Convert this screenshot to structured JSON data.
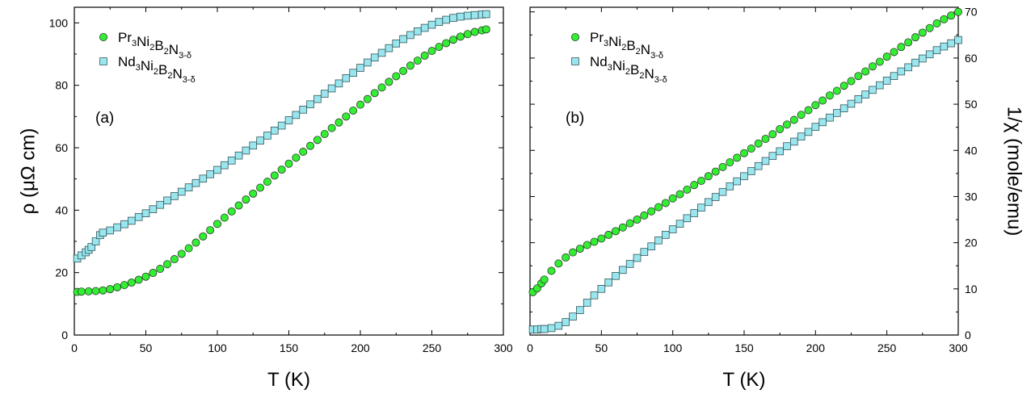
{
  "chart_data": [
    {
      "type": "scatter",
      "panel_label": "(a)",
      "xlabel": "T (K)",
      "ylabel": "ρ (μΩ cm)",
      "xlim": [
        0,
        300
      ],
      "ylim": [
        0,
        105
      ],
      "xticks": [
        0,
        50,
        100,
        150,
        200,
        250,
        300
      ],
      "yticks": [
        0,
        20,
        40,
        60,
        80,
        100
      ],
      "y_axis_side": "left",
      "grid": false,
      "legend_placement": "top-left",
      "series": [
        {
          "name": "Pr3Ni2B2N3-δ",
          "legend": {
            "base": [
              "Pr",
              "Ni",
              "B",
              "N"
            ],
            "subs": [
              "3",
              "2",
              "2",
              "3-δ"
            ]
          },
          "marker": "circle",
          "color": "#33ee33",
          "points": [
            [
              2,
              13.8
            ],
            [
              5,
              13.9
            ],
            [
              10,
              14.0
            ],
            [
              15,
              14.1
            ],
            [
              20,
              14.3
            ],
            [
              25,
              14.7
            ],
            [
              30,
              15.3
            ],
            [
              35,
              16.0
            ],
            [
              40,
              16.8
            ],
            [
              45,
              17.7
            ],
            [
              50,
              18.7
            ],
            [
              55,
              19.9
            ],
            [
              60,
              21.2
            ],
            [
              65,
              22.7
            ],
            [
              70,
              24.3
            ],
            [
              75,
              26.0
            ],
            [
              80,
              27.8
            ],
            [
              85,
              29.6
            ],
            [
              90,
              31.6
            ],
            [
              95,
              33.6
            ],
            [
              100,
              35.6
            ],
            [
              105,
              37.6
            ],
            [
              110,
              39.6
            ],
            [
              115,
              41.5
            ],
            [
              120,
              43.4
            ],
            [
              125,
              45.3
            ],
            [
              130,
              47.2
            ],
            [
              135,
              49.1
            ],
            [
              140,
              51.1
            ],
            [
              145,
              53.0
            ],
            [
              150,
              54.9
            ],
            [
              155,
              56.8
            ],
            [
              160,
              58.7
            ],
            [
              165,
              60.6
            ],
            [
              170,
              62.5
            ],
            [
              175,
              64.4
            ],
            [
              180,
              66.3
            ],
            [
              185,
              68.1
            ],
            [
              190,
              70.0
            ],
            [
              195,
              71.9
            ],
            [
              200,
              73.8
            ],
            [
              205,
              75.6
            ],
            [
              210,
              77.5
            ],
            [
              215,
              79.3
            ],
            [
              220,
              81.1
            ],
            [
              225,
              82.9
            ],
            [
              230,
              84.6
            ],
            [
              235,
              86.3
            ],
            [
              240,
              87.9
            ],
            [
              245,
              89.5
            ],
            [
              250,
              91.0
            ],
            [
              255,
              92.3
            ],
            [
              260,
              93.5
            ],
            [
              265,
              94.6
            ],
            [
              270,
              95.6
            ],
            [
              275,
              96.4
            ],
            [
              280,
              97.1
            ],
            [
              285,
              97.6
            ],
            [
              288,
              97.9
            ]
          ]
        },
        {
          "name": "Nd3Ni2B2N3-δ",
          "legend": {
            "base": [
              "Nd",
              "Ni",
              "B",
              "N"
            ],
            "subs": [
              "3",
              "2",
              "2",
              "3-δ"
            ]
          },
          "marker": "square",
          "color": "#99e6ee",
          "points": [
            [
              2,
              24.5
            ],
            [
              5,
              25.5
            ],
            [
              8,
              26.5
            ],
            [
              10,
              27.3
            ],
            [
              12,
              28.2
            ],
            [
              15,
              30.0
            ],
            [
              18,
              32.0
            ],
            [
              20,
              32.8
            ],
            [
              25,
              33.5
            ],
            [
              30,
              34.5
            ],
            [
              35,
              35.5
            ],
            [
              40,
              36.6
            ],
            [
              45,
              37.8
            ],
            [
              50,
              39.0
            ],
            [
              55,
              40.3
            ],
            [
              60,
              41.7
            ],
            [
              65,
              43.1
            ],
            [
              70,
              44.5
            ],
            [
              75,
              45.9
            ],
            [
              80,
              47.3
            ],
            [
              85,
              48.7
            ],
            [
              90,
              50.1
            ],
            [
              95,
              51.5
            ],
            [
              100,
              52.9
            ],
            [
              105,
              54.4
            ],
            [
              110,
              55.9
            ],
            [
              115,
              57.5
            ],
            [
              120,
              59.1
            ],
            [
              125,
              60.7
            ],
            [
              130,
              62.3
            ],
            [
              135,
              63.9
            ],
            [
              140,
              65.5
            ],
            [
              145,
              67.1
            ],
            [
              150,
              68.8
            ],
            [
              155,
              70.5
            ],
            [
              160,
              72.2
            ],
            [
              165,
              73.9
            ],
            [
              170,
              75.6
            ],
            [
              175,
              77.3
            ],
            [
              180,
              79.0
            ],
            [
              185,
              80.6
            ],
            [
              190,
              82.3
            ],
            [
              195,
              84.0
            ],
            [
              200,
              85.6
            ],
            [
              205,
              87.3
            ],
            [
              210,
              88.9
            ],
            [
              215,
              90.4
            ],
            [
              220,
              91.9
            ],
            [
              225,
              93.4
            ],
            [
              230,
              94.8
            ],
            [
              235,
              96.1
            ],
            [
              240,
              97.3
            ],
            [
              245,
              98.4
            ],
            [
              250,
              99.4
            ],
            [
              255,
              100.3
            ],
            [
              260,
              101.0
            ],
            [
              265,
              101.6
            ],
            [
              270,
              102.0
            ],
            [
              275,
              102.3
            ],
            [
              280,
              102.5
            ],
            [
              285,
              102.7
            ],
            [
              288,
              102.8
            ]
          ]
        }
      ]
    },
    {
      "type": "scatter",
      "panel_label": "(b)",
      "xlabel": "T (K)",
      "ylabel": "1/χ (mole/emu)",
      "xlim": [
        0,
        300
      ],
      "ylim": [
        0,
        71
      ],
      "xticks": [
        0,
        50,
        100,
        150,
        200,
        250,
        300
      ],
      "yticks": [
        0,
        10,
        20,
        30,
        40,
        50,
        60,
        70
      ],
      "y_axis_side": "right",
      "grid": false,
      "legend_placement": "top-left",
      "series": [
        {
          "name": "Pr3Ni2B2N3-δ",
          "legend": {
            "base": [
              "Pr",
              "Ni",
              "B",
              "N"
            ],
            "subs": [
              "3",
              "2",
              "2",
              "3-δ"
            ]
          },
          "marker": "circle",
          "color": "#33ee33",
          "points": [
            [
              2,
              9.3
            ],
            [
              5,
              10.1
            ],
            [
              8,
              11.2
            ],
            [
              10,
              12.0
            ],
            [
              15,
              13.9
            ],
            [
              20,
              15.5
            ],
            [
              25,
              16.8
            ],
            [
              30,
              17.9
            ],
            [
              35,
              18.7
            ],
            [
              40,
              19.5
            ],
            [
              45,
              20.2
            ],
            [
              50,
              20.9
            ],
            [
              55,
              21.7
            ],
            [
              60,
              22.5
            ],
            [
              65,
              23.3
            ],
            [
              70,
              24.2
            ],
            [
              75,
              25.0
            ],
            [
              80,
              25.9
            ],
            [
              85,
              26.8
            ],
            [
              90,
              27.7
            ],
            [
              95,
              28.6
            ],
            [
              100,
              29.6
            ],
            [
              105,
              30.5
            ],
            [
              110,
              31.5
            ],
            [
              115,
              32.5
            ],
            [
              120,
              33.4
            ],
            [
              125,
              34.4
            ],
            [
              130,
              35.4
            ],
            [
              135,
              36.4
            ],
            [
              140,
              37.4
            ],
            [
              145,
              38.4
            ],
            [
              150,
              39.4
            ],
            [
              155,
              40.4
            ],
            [
              160,
              41.5
            ],
            [
              165,
              42.5
            ],
            [
              170,
              43.5
            ],
            [
              175,
              44.6
            ],
            [
              180,
              45.6
            ],
            [
              185,
              46.6
            ],
            [
              190,
              47.7
            ],
            [
              195,
              48.7
            ],
            [
              200,
              49.8
            ],
            [
              205,
              50.8
            ],
            [
              210,
              51.9
            ],
            [
              215,
              52.9
            ],
            [
              220,
              54.0
            ],
            [
              225,
              55.0
            ],
            [
              230,
              56.1
            ],
            [
              235,
              57.1
            ],
            [
              240,
              58.2
            ],
            [
              245,
              59.2
            ],
            [
              250,
              60.3
            ],
            [
              255,
              61.3
            ],
            [
              260,
              62.4
            ],
            [
              265,
              63.4
            ],
            [
              270,
              64.5
            ],
            [
              275,
              65.5
            ],
            [
              280,
              66.5
            ],
            [
              285,
              67.5
            ],
            [
              290,
              68.4
            ],
            [
              295,
              69.2
            ],
            [
              300,
              70.0
            ]
          ]
        },
        {
          "name": "Nd3Ni2B2N3-δ",
          "legend": {
            "base": [
              "Nd",
              "Ni",
              "B",
              "N"
            ],
            "subs": [
              "3",
              "2",
              "2",
              "3-δ"
            ]
          },
          "marker": "square",
          "color": "#99e6ee",
          "points": [
            [
              2,
              1.2
            ],
            [
              5,
              1.2
            ],
            [
              8,
              1.3
            ],
            [
              10,
              1.3
            ],
            [
              15,
              1.5
            ],
            [
              20,
              2.0
            ],
            [
              25,
              2.8
            ],
            [
              30,
              4.0
            ],
            [
              35,
              5.4
            ],
            [
              40,
              7.0
            ],
            [
              45,
              8.6
            ],
            [
              50,
              10.0
            ],
            [
              55,
              11.4
            ],
            [
              60,
              12.8
            ],
            [
              65,
              14.1
            ],
            [
              70,
              15.4
            ],
            [
              75,
              16.7
            ],
            [
              80,
              18.0
            ],
            [
              85,
              19.2
            ],
            [
              90,
              20.5
            ],
            [
              95,
              21.7
            ],
            [
              100,
              22.9
            ],
            [
              105,
              24.1
            ],
            [
              110,
              25.3
            ],
            [
              115,
              26.4
            ],
            [
              120,
              27.6
            ],
            [
              125,
              28.8
            ],
            [
              130,
              29.9
            ],
            [
              135,
              31.0
            ],
            [
              140,
              32.2
            ],
            [
              145,
              33.3
            ],
            [
              150,
              34.4
            ],
            [
              155,
              35.5
            ],
            [
              160,
              36.6
            ],
            [
              165,
              37.7
            ],
            [
              170,
              38.8
            ],
            [
              175,
              39.8
            ],
            [
              180,
              40.9
            ],
            [
              185,
              41.9
            ],
            [
              190,
              43.0
            ],
            [
              195,
              44.0
            ],
            [
              200,
              45.1
            ],
            [
              205,
              46.1
            ],
            [
              210,
              47.1
            ],
            [
              215,
              48.1
            ],
            [
              220,
              49.1
            ],
            [
              225,
              50.1
            ],
            [
              230,
              51.1
            ],
            [
              235,
              52.1
            ],
            [
              240,
              53.1
            ],
            [
              245,
              54.1
            ],
            [
              250,
              55.1
            ],
            [
              255,
              56.1
            ],
            [
              260,
              57.1
            ],
            [
              265,
              58.0
            ],
            [
              270,
              59.0
            ],
            [
              275,
              59.9
            ],
            [
              280,
              60.8
            ],
            [
              285,
              61.7
            ],
            [
              290,
              62.5
            ],
            [
              295,
              63.2
            ],
            [
              300,
              63.9
            ]
          ]
        }
      ]
    }
  ]
}
